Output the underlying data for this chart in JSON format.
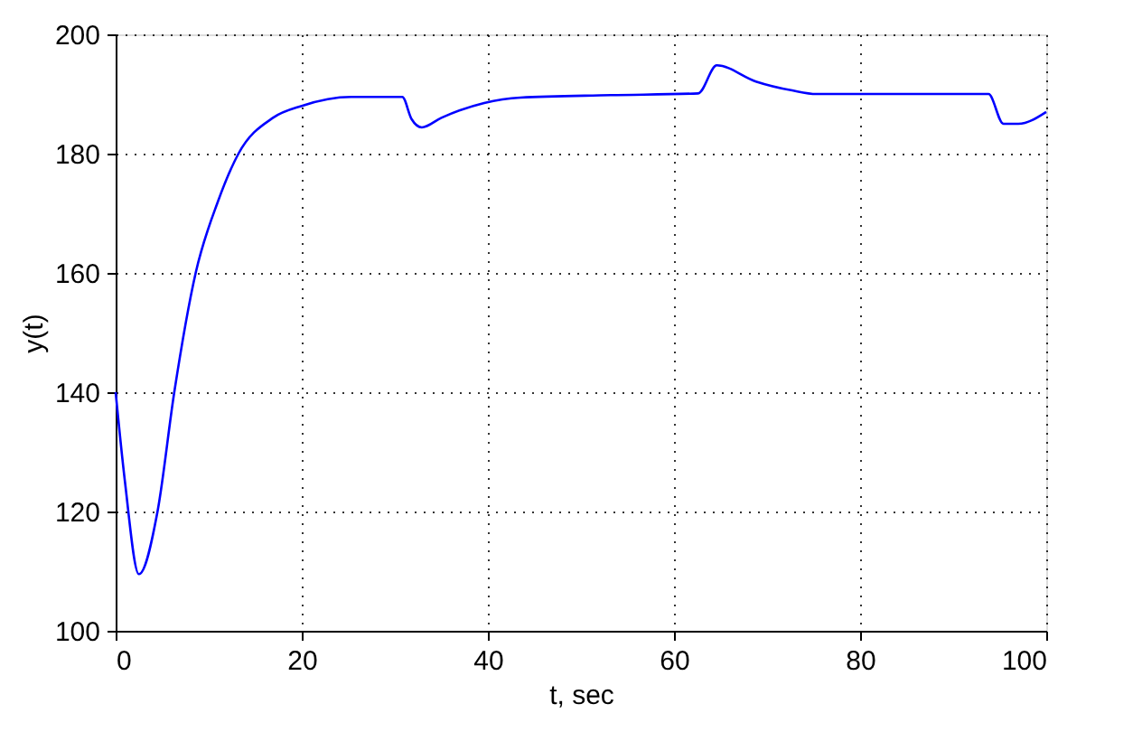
{
  "chart_data": {
    "type": "line",
    "xlabel": "t, sec",
    "ylabel": "y(t)",
    "x": [
      0,
      1,
      2.5,
      4.5,
      6.3,
      8.6,
      11,
      13.2,
      16.9,
      20,
      25.3,
      30.8,
      31.8,
      32.9,
      35,
      39.6,
      43.5,
      53.2,
      62.6,
      64.6,
      68.8,
      72.7,
      75.3,
      93.8,
      95.4,
      97,
      100
    ],
    "series": [
      {
        "color": "#0000ff",
        "values": [
          140,
          125,
          109.5,
          120,
          140,
          160,
          172,
          180,
          186,
          188,
          189.5,
          189.5,
          185.8,
          184.4,
          186,
          188.5,
          189.4,
          189.8,
          190.1,
          194.8,
          192.1,
          190.6,
          190,
          190,
          185,
          185,
          187
        ]
      }
    ],
    "xlim": [
      0,
      100
    ],
    "xticks": [
      0,
      20,
      40,
      60,
      80,
      100
    ],
    "ylim": [
      100,
      200
    ],
    "yticks": [
      100,
      120,
      140,
      160,
      180,
      200
    ],
    "grid": true,
    "marker": "none",
    "line_style": "solid"
  }
}
